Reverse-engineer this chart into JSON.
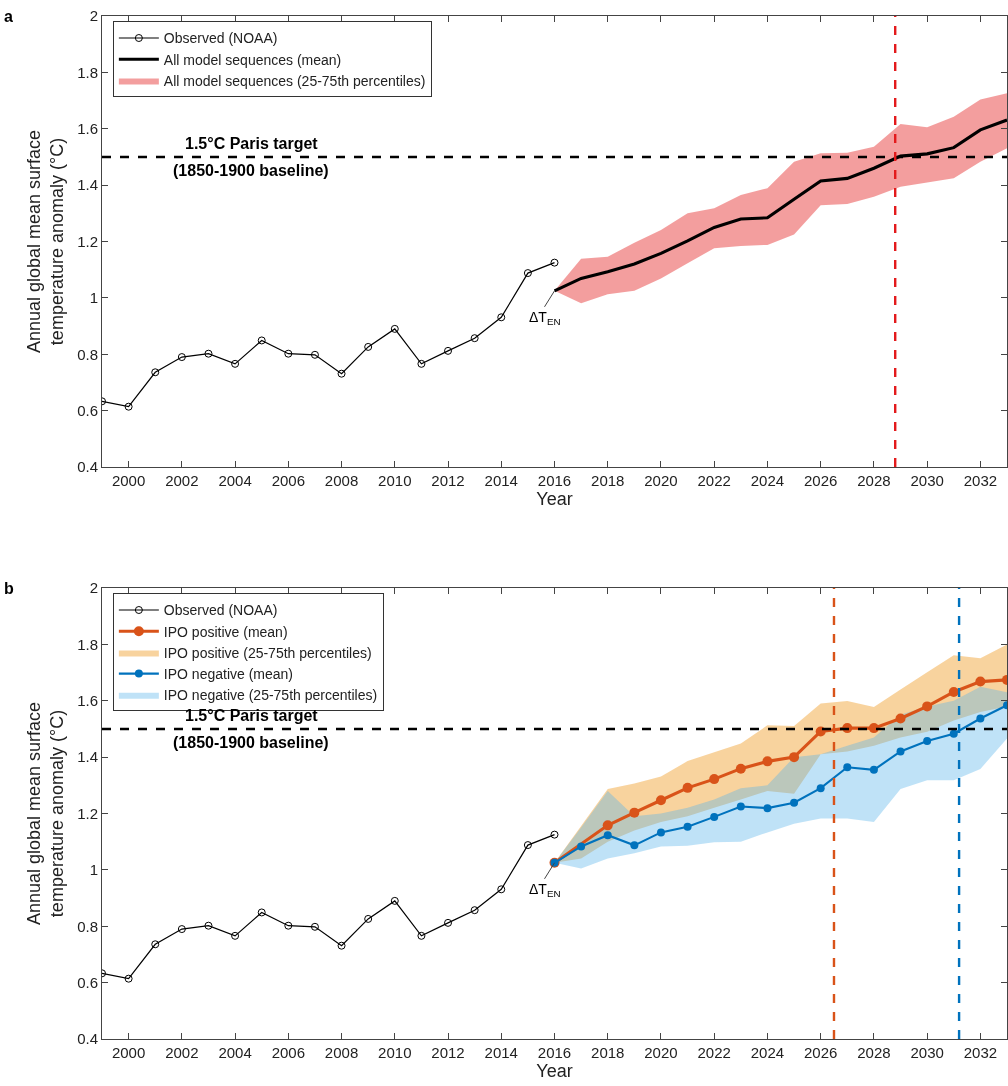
{
  "chart_data": [
    {
      "type": "line",
      "annotations": [
        "a",
        {
          "text": "ΔT$_{EN}$",
          "x": 2016,
          "y": 1.025
        }
      ],
      "xlabel": "Year",
      "ylabel": "Annual global mean surface\ntemperature anomaly (°C)",
      "xlim": [
        1999,
        2033
      ],
      "xticks": [
        2000,
        2002,
        2004,
        2006,
        2008,
        2010,
        2012,
        2014,
        2016,
        2018,
        2020,
        2022,
        2024,
        2026,
        2028,
        2030,
        2032
      ],
      "ylim": [
        0.4,
        2
      ],
      "yticks": [
        0.4,
        0.6,
        0.8,
        1,
        1.2,
        1.4,
        1.6,
        1.8,
        2
      ],
      "grid": false,
      "legend": "top left",
      "series": [
        {
          "name": "Observed (NOAA)",
          "color": "#000000",
          "marker": "circle",
          "x": [
            1999,
            2000,
            2001,
            2002,
            2003,
            2004,
            2005,
            2006,
            2007,
            2008,
            2009,
            2010,
            2011,
            2012,
            2013,
            2014,
            2015,
            2016
          ],
          "values": [
            0.633,
            0.614,
            0.736,
            0.79,
            0.802,
            0.766,
            0.849,
            0.802,
            0.798,
            0.731,
            0.826,
            0.89,
            0.766,
            0.812,
            0.857,
            0.931,
            1.088,
            1.125
          ]
        },
        {
          "name": "All model sequences (mean)",
          "color": "#000000",
          "marker": "none",
          "x": [
            2016,
            2017,
            2018,
            2019,
            2020,
            2021,
            2022,
            2023,
            2024,
            2025,
            2026,
            2027,
            2028,
            2029,
            2030,
            2031,
            2032,
            2033
          ],
          "values": [
            1.025,
            1.069,
            1.093,
            1.12,
            1.158,
            1.202,
            1.25,
            1.28,
            1.284,
            1.35,
            1.415,
            1.424,
            1.46,
            1.503,
            1.511,
            1.533,
            1.596,
            1.631
          ]
        },
        {
          "name": "All model sequences (25-75th percentiles)",
          "type": "area",
          "color": "#e00000",
          "x": [
            2016,
            2017,
            2018,
            2019,
            2020,
            2021,
            2022,
            2023,
            2024,
            2025,
            2026,
            2027,
            2028,
            2029,
            2030,
            2031,
            2032,
            2033
          ],
          "values": [
            null,
            null,
            null,
            null,
            null,
            null,
            null,
            null,
            null,
            null,
            null,
            null,
            null,
            null,
            null,
            null,
            null,
            null
          ],
          "lower": [
            1.025,
            0.981,
            1.013,
            1.025,
            1.069,
            1.123,
            1.176,
            1.184,
            1.188,
            1.225,
            1.329,
            1.333,
            1.359,
            1.394,
            1.409,
            1.424,
            1.483,
            1.531
          ],
          "upper": [
            1.025,
            1.139,
            1.146,
            1.196,
            1.241,
            1.3,
            1.318,
            1.365,
            1.389,
            1.483,
            1.513,
            1.515,
            1.536,
            1.617,
            1.605,
            1.643,
            1.704,
            1.726
          ]
        }
      ],
      "ref_lines": [
        {
          "axis": "y",
          "value": 1.5,
          "label": "1.5°C Paris target\n(1850-1900 baseline)",
          "color": "#000000",
          "line_style": "dashed"
        },
        {
          "axis": "x",
          "value": 2028.8,
          "color": "#e31a1c",
          "line_style": "dashed"
        }
      ]
    },
    {
      "type": "line",
      "annotations": [
        "b",
        {
          "text": "ΔT$_{EN}$",
          "x": 2016,
          "y": 1.025
        }
      ],
      "xlabel": "Year",
      "ylabel": "Annual global mean surface\ntemperature anomaly (°C)",
      "xlim": [
        1999,
        2033
      ],
      "xticks": [
        2000,
        2002,
        2004,
        2006,
        2008,
        2010,
        2012,
        2014,
        2016,
        2018,
        2020,
        2022,
        2024,
        2026,
        2028,
        2030,
        2032
      ],
      "ylim": [
        0.4,
        2
      ],
      "yticks": [
        0.4,
        0.6,
        0.8,
        1,
        1.2,
        1.4,
        1.6,
        1.8,
        2
      ],
      "grid": false,
      "legend": "top left",
      "series": [
        {
          "name": "Observed (NOAA)",
          "color": "#000000",
          "marker": "circle",
          "x": [
            1999,
            2000,
            2001,
            2002,
            2003,
            2004,
            2005,
            2006,
            2007,
            2008,
            2009,
            2010,
            2011,
            2012,
            2013,
            2014,
            2015,
            2016
          ],
          "values": [
            0.633,
            0.614,
            0.736,
            0.79,
            0.802,
            0.766,
            0.849,
            0.802,
            0.798,
            0.731,
            0.826,
            0.89,
            0.766,
            0.812,
            0.857,
            0.931,
            1.088,
            1.125
          ]
        },
        {
          "name": "IPO positive (mean)",
          "color": "#d95319",
          "marker": "circle",
          "x": [
            2016,
            2018,
            2019,
            2020,
            2021,
            2022,
            2023,
            2024,
            2025,
            2026,
            2027,
            2028,
            2029,
            2030,
            2031,
            2032,
            2033
          ],
          "values": [
            1.025,
            1.158,
            1.203,
            1.247,
            1.291,
            1.322,
            1.359,
            1.385,
            1.4,
            1.491,
            1.503,
            1.503,
            1.537,
            1.58,
            1.631,
            1.668,
            1.674
          ]
        },
        {
          "name": "IPO positive (25-75th percentiles)",
          "type": "area",
          "color": "#ed8b00",
          "x": [
            2016,
            2017,
            2018,
            2019,
            2020,
            2021,
            2022,
            2023,
            2024,
            2025,
            2026,
            2027,
            2028,
            2029,
            2030,
            2031,
            2032,
            2033
          ],
          "values": [
            null,
            null,
            null,
            null,
            null,
            null,
            null,
            null,
            null,
            null,
            null,
            null,
            null,
            null,
            null,
            null,
            null,
            null
          ],
          "lower": [
            1.025,
            1.04,
            1.1,
            1.14,
            1.17,
            1.19,
            1.22,
            1.25,
            1.28,
            1.27,
            1.41,
            1.42,
            1.44,
            1.47,
            1.49,
            1.53,
            1.56,
            1.58
          ],
          "upper": [
            1.025,
            1.156,
            1.287,
            1.306,
            1.331,
            1.386,
            1.417,
            1.448,
            1.513,
            1.51,
            1.59,
            1.599,
            1.578,
            1.64,
            1.701,
            1.761,
            1.751,
            1.8
          ]
        },
        {
          "name": "IPO negative (mean)",
          "color": "#0072bd",
          "marker": "circle",
          "x": [
            2016,
            2017,
            2018,
            2019,
            2020,
            2021,
            2022,
            2023,
            2024,
            2025,
            2026,
            2027,
            2028,
            2029,
            2030,
            2031,
            2032,
            2033
          ],
          "values": [
            1.025,
            1.083,
            1.123,
            1.087,
            1.133,
            1.153,
            1.188,
            1.225,
            1.219,
            1.238,
            1.29,
            1.364,
            1.355,
            1.42,
            1.457,
            1.483,
            1.537,
            1.584
          ]
        },
        {
          "name": "IPO negative (25-75th percentiles)",
          "type": "area",
          "color": "#56b4e9",
          "x": [
            2016,
            2017,
            2018,
            2019,
            2020,
            2021,
            2022,
            2023,
            2024,
            2025,
            2026,
            2027,
            2028,
            2029,
            2030,
            2031,
            2032,
            2033
          ],
          "values": [
            null,
            null,
            null,
            null,
            null,
            null,
            null,
            null,
            null,
            null,
            null,
            null,
            null,
            null,
            null,
            null,
            null,
            null
          ],
          "lower": [
            1.025,
            1.005,
            1.04,
            1.059,
            1.083,
            1.086,
            1.098,
            1.1,
            1.133,
            1.164,
            1.182,
            1.182,
            1.17,
            1.287,
            1.318,
            1.318,
            1.358,
            1.466
          ],
          "upper": [
            1.025,
            1.15,
            1.28,
            1.19,
            1.2,
            1.22,
            1.25,
            1.29,
            1.3,
            1.4,
            1.41,
            1.44,
            1.47,
            1.55,
            1.58,
            1.6,
            1.65,
            1.63
          ]
        }
      ],
      "ref_lines": [
        {
          "axis": "y",
          "value": 1.5,
          "label": "1.5°C Paris target\n(1850-1900 baseline)",
          "color": "#000000",
          "line_style": "dashed"
        },
        {
          "axis": "x",
          "value": 2026.5,
          "color": "#d95319",
          "line_style": "dashed"
        },
        {
          "axis": "x",
          "value": 2031.2,
          "color": "#0072bd",
          "line_style": "dashed"
        }
      ]
    }
  ]
}
